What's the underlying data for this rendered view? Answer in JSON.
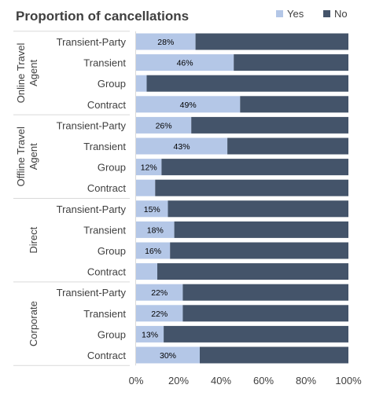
{
  "chart_data": {
    "type": "bar",
    "orientation": "horizontal",
    "stacked": "percent",
    "title": "Proportion of cancellations",
    "legend": {
      "placement": "top-right",
      "entries": [
        "Yes",
        "No"
      ]
    },
    "colors": {
      "Yes": "#b4c7e7",
      "No": "#44546a"
    },
    "groups": [
      {
        "name": "Online Travel Agent",
        "categories": [
          "Transient-Party",
          "Transient",
          "Group",
          "Contract"
        ],
        "yes": [
          0.28,
          0.46,
          0.05,
          0.49
        ],
        "labels": [
          "28%",
          "46%",
          "",
          "49%"
        ]
      },
      {
        "name": "Offline Travel Agent",
        "categories": [
          "Transient-Party",
          "Transient",
          "Group",
          "Contract"
        ],
        "yes": [
          0.26,
          0.43,
          0.12,
          0.09
        ],
        "labels": [
          "26%",
          "43%",
          "12%",
          ""
        ]
      },
      {
        "name": "Direct",
        "categories": [
          "Transient-Party",
          "Transient",
          "Group",
          "Contract"
        ],
        "yes": [
          0.15,
          0.18,
          0.16,
          0.1
        ],
        "labels": [
          "15%",
          "18%",
          "16%",
          ""
        ]
      },
      {
        "name": "Corporate",
        "categories": [
          "Transient-Party",
          "Transient",
          "Group",
          "Contract"
        ],
        "yes": [
          0.22,
          0.22,
          0.13,
          0.3
        ],
        "labels": [
          "22%",
          "22%",
          "13%",
          "30%"
        ]
      }
    ],
    "xlim": [
      0,
      1
    ],
    "xticks": [
      "0%",
      "20%",
      "40%",
      "60%",
      "80%",
      "100%"
    ],
    "grid": false
  }
}
